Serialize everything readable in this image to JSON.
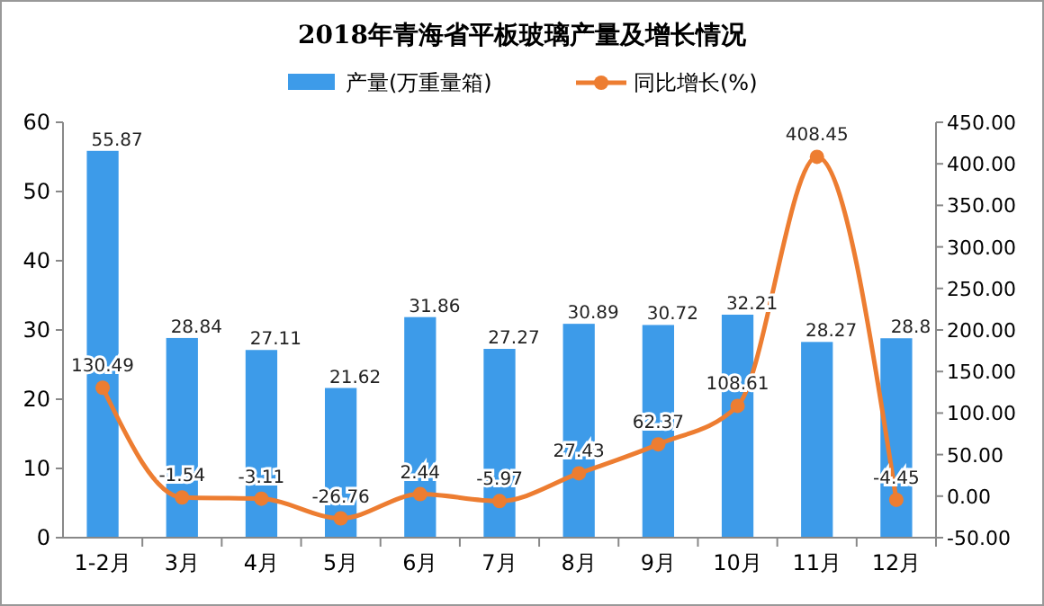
{
  "chart_data": {
    "type": "bar",
    "title": "2018年青海省平板玻璃产量及增长情况",
    "categories": [
      "1-2月",
      "3月",
      "4月",
      "5月",
      "6月",
      "7月",
      "8月",
      "9月",
      "10月",
      "11月",
      "12月"
    ],
    "series": [
      {
        "name": "产量(万重量箱)",
        "color": "#3d9be9",
        "values": [
          55.87,
          28.84,
          27.11,
          21.62,
          31.86,
          27.27,
          30.89,
          30.72,
          32.21,
          28.27,
          28.8
        ]
      },
      {
        "name": "同比增长(%)",
        "type": "line",
        "axis": "y2",
        "color": "#ed7d31",
        "values": [
          130.49,
          -1.54,
          -3.11,
          -26.76,
          2.44,
          -5.97,
          27.43,
          62.37,
          108.61,
          408.45,
          -4.45
        ]
      }
    ],
    "ylim": [
      0,
      60
    ],
    "yticks": [
      0,
      10,
      20,
      30,
      40,
      50,
      60
    ],
    "y2lim": [
      -50,
      450
    ],
    "y2ticks": [
      {
        "value": -50,
        "label": "-50.00"
      },
      {
        "value": 0,
        "label": "0.00"
      },
      {
        "value": 50,
        "label": "50.00"
      },
      {
        "value": 100,
        "label": "100.00"
      },
      {
        "value": 150,
        "label": "150.00"
      },
      {
        "value": 200,
        "label": "200.00"
      },
      {
        "value": 250,
        "label": "250.00"
      },
      {
        "value": 300,
        "label": "300.00"
      },
      {
        "value": 350,
        "label": "350.00"
      },
      {
        "value": 400,
        "label": "400.00"
      },
      {
        "value": 450,
        "label": "450.00"
      }
    ],
    "data_labels": true,
    "legend": "top",
    "marker": "circle",
    "grid": false
  }
}
